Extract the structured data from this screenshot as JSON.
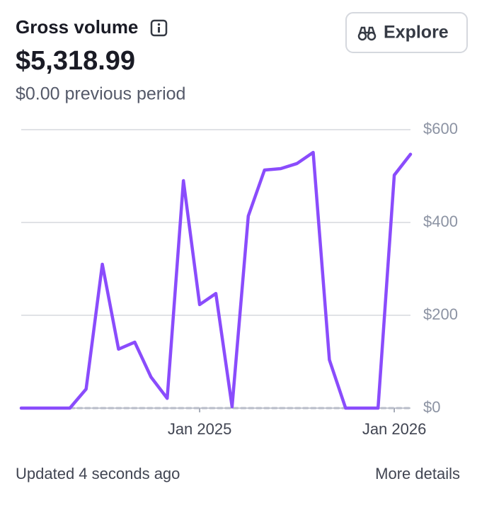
{
  "header": {
    "title": "Gross volume",
    "total": "$5,318.99",
    "previous": "$0.00 previous period",
    "button": "Explore"
  },
  "chart_data": {
    "type": "line",
    "categories": [
      null,
      null,
      null,
      null,
      null,
      null,
      null,
      null,
      null,
      null,
      null,
      "Jan 2025",
      null,
      null,
      null,
      null,
      null,
      null,
      null,
      null,
      null,
      null,
      null,
      "Jan 2026",
      null
    ],
    "series": [
      {
        "color": "#8a4cfc",
        "values": [
          0,
          0,
          0,
          0,
          41,
          310,
          127,
          142,
          67,
          21,
          490,
          223,
          247,
          3,
          414,
          513,
          516,
          527,
          551,
          104,
          0,
          0,
          0,
          502,
          547
        ]
      },
      {
        "color": "#b8bcc8",
        "dashed": true,
        "values": [
          null,
          null,
          null,
          0,
          0,
          0,
          0,
          0,
          0,
          0,
          0,
          0,
          0,
          0,
          0,
          0,
          0,
          0,
          0,
          0,
          0,
          0,
          0,
          0,
          0
        ]
      }
    ],
    "ylim": [
      0,
      600
    ],
    "yticks": [
      {
        "value": 0,
        "label": "$0"
      },
      {
        "value": 200,
        "label": "$200"
      },
      {
        "value": 400,
        "label": "$400"
      },
      {
        "value": 600,
        "label": "$600"
      }
    ],
    "grid": true
  },
  "footer": {
    "updated": "Updated 4 seconds ago",
    "link": "More details"
  }
}
